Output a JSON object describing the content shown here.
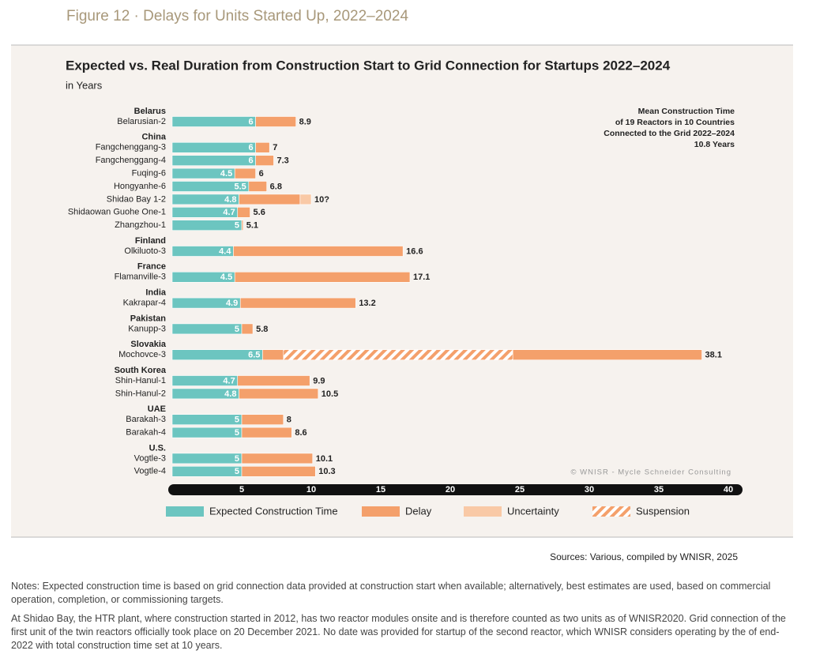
{
  "figure_label": "Figure 12 · Delays for Units Started Up, 2022–2024",
  "chart_data": {
    "type": "stacked-barh",
    "title": "Expected vs. Real Duration from Construction Start to Grid Connection for Startups 2022–2024",
    "subtitle": "in Years",
    "annotation": [
      "Mean Construction Time",
      "of 19 Reactors in 10 Countries",
      "Connected to the Grid 2022–2024",
      "10.8 Years"
    ],
    "credit": "© WNISR - Mycle Schneider Consulting",
    "categories": [
      "Belarusian-2",
      "Fangchenggang-3",
      "Fangchenggang-4",
      "Fuqing-6",
      "Hongyanhe-6",
      "Shidao Bay 1-2",
      "Shidaowan Guohe One-1",
      "Zhangzhou-1",
      "Olkiluoto-3",
      "Flamanville-3",
      "Kakrapar-4",
      "Kanupp-3",
      "Mochovce-3",
      "Shin-Hanul-1",
      "Shin-Hanul-2",
      "Barakah-3",
      "Barakah-4",
      "Vogtle-3",
      "Vogtle-4"
    ],
    "group_labels": [
      "Belarus",
      "China",
      null,
      null,
      null,
      null,
      null,
      null,
      "Finland",
      "France",
      "India",
      "Pakistan",
      "Slovakia",
      "South Korea",
      null,
      "UAE",
      null,
      "U.S.",
      null
    ],
    "series": [
      {
        "name": "Expected Construction Time",
        "color": "#6cc5c0",
        "values": [
          6,
          6,
          6,
          4.5,
          5.5,
          4.8,
          4.7,
          5,
          4.4,
          4.5,
          4.9,
          5,
          6.5,
          4.7,
          4.8,
          5,
          5,
          5,
          5
        ]
      },
      {
        "name": "Delay",
        "color": "#f4a06b",
        "values": [
          2.9,
          1,
          1.3,
          1.5,
          1.3,
          4.4,
          0.9,
          0.1,
          12.2,
          12.6,
          8.3,
          0.8,
          1.5,
          5.2,
          5.7,
          3,
          3.6,
          5.1,
          5.3
        ],
        "values_after_suspension": [
          null,
          null,
          null,
          null,
          null,
          null,
          null,
          null,
          null,
          null,
          null,
          null,
          13.6,
          null,
          null,
          null,
          null,
          null,
          null
        ]
      },
      {
        "name": "Uncertainty",
        "color": "#f9c9a6",
        "values": [
          null,
          null,
          null,
          null,
          null,
          0.8,
          null,
          null,
          null,
          null,
          null,
          null,
          null,
          null,
          null,
          null,
          null,
          null,
          null
        ]
      },
      {
        "name": "Suspension",
        "color": "#f4a06b",
        "hatched": true,
        "values": [
          null,
          null,
          null,
          null,
          null,
          null,
          null,
          null,
          null,
          null,
          null,
          null,
          16.5,
          null,
          null,
          null,
          null,
          null,
          null
        ]
      }
    ],
    "totals": {
      "values": [
        8.9,
        7,
        7.3,
        6,
        6.8,
        10,
        5.6,
        5.1,
        16.6,
        17.1,
        13.2,
        5.8,
        38.1,
        9.9,
        10.5,
        8,
        8.6,
        10.1,
        10.3
      ],
      "value_labels": [
        "8.9",
        "7",
        "7.3",
        "6",
        "6.8",
        "10?",
        "5.6",
        "5.1",
        "16.6",
        "17.1",
        "13.2",
        "5.8",
        "38.1",
        "9.9",
        "10.5",
        "8",
        "8.6",
        "10.1",
        "10.3"
      ]
    },
    "xlim": [
      0,
      40
    ],
    "xticks": [
      5,
      10,
      15,
      20,
      25,
      30,
      35,
      40
    ]
  },
  "sources": "Sources: Various, compiled by WNISR, 2025",
  "notes": [
    "Notes: Expected construction time is based on grid connection data provided at construction start when available; alternatively, best estimates are used, based on commercial operation, completion, or commissioning targets.",
    "At Shidao Bay, the HTR plant, where construction started in 2012, has two reactor modules onsite and is therefore counted as two units as of WNISR2020. Grid connection of the first unit of the twin reactors officially took place on 20 December 2021. No date was provided for startup of the second reactor, which WNISR considers operating by the of end-2022 with total construction time set at 10 years."
  ]
}
